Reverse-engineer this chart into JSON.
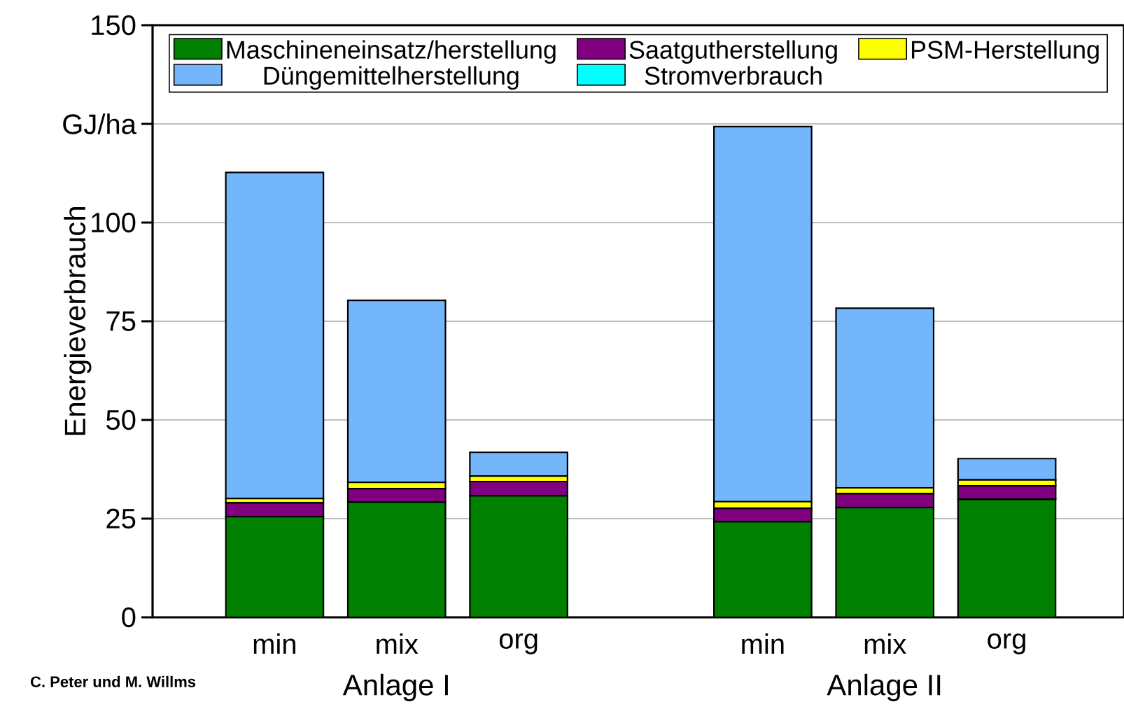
{
  "chart_data": {
    "type": "bar",
    "stacked": true,
    "ylabel": "Energieverbrauch",
    "categories": [
      "min",
      "mix",
      "org",
      null,
      "min",
      "mix",
      "org"
    ],
    "series": [
      {
        "name": "Maschineneinsatz/herstellung",
        "color": "#007f00",
        "values": [
          25.5,
          29.2,
          30.8,
          null,
          24.2,
          27.8,
          29.9
        ]
      },
      {
        "name": "Saatgutherstellung",
        "color": "#800080",
        "values": [
          3.5,
          3.4,
          3.6,
          null,
          3.4,
          3.5,
          3.4
        ]
      },
      {
        "name": "PSM-Herstellung",
        "color": "#ffff00",
        "values": [
          1.1,
          1.6,
          1.4,
          null,
          1.7,
          1.5,
          1.5
        ]
      },
      {
        "name": "Düngemittelherstellung",
        "color": "#74b6fb",
        "values": [
          82.6,
          46.1,
          6.0,
          null,
          95.0,
          45.5,
          5.4
        ]
      },
      {
        "name": "Stromverbrauch",
        "color": "#00ffff",
        "values": [
          0,
          0,
          0,
          null,
          0,
          0,
          0
        ]
      }
    ],
    "ylim": [
      0,
      150
    ],
    "yticks": [
      0,
      25,
      50,
      75,
      100,
      {
        "value": 125,
        "label": "GJ/ha"
      },
      150
    ],
    "grid": "y",
    "legend": "top",
    "annotations": [
      "Anlage I",
      "Anlage II",
      "C. Peter und M. Willms"
    ]
  }
}
